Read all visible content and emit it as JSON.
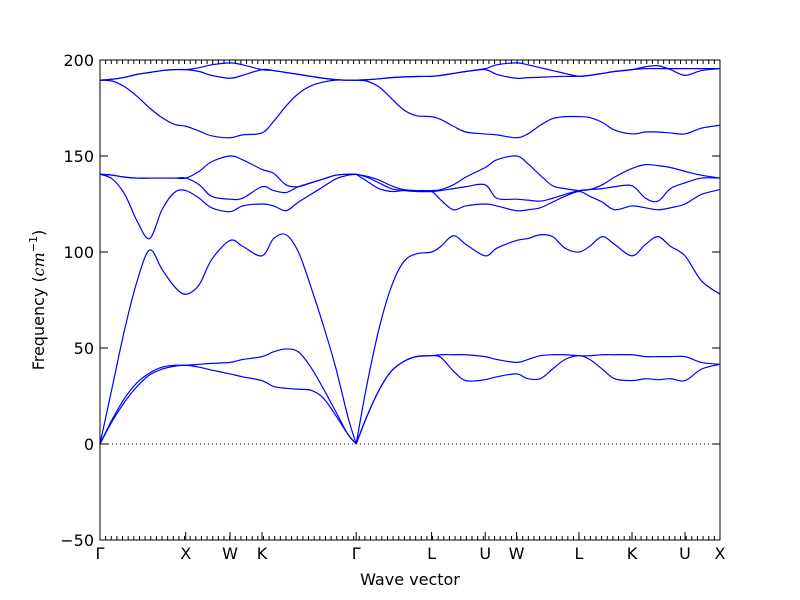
{
  "chart_data": {
    "type": "line",
    "xlabel": "Wave vector",
    "ylabel": "Frequency ($cm^{-1}$)",
    "ylabel_parts": {
      "prefix": "Frequency (",
      "unit_base": "cm",
      "unit_exp": "−1",
      "suffix": ")"
    },
    "ylim": [
      -50,
      200
    ],
    "y_ticks": [
      -50,
      0,
      50,
      100,
      150,
      200
    ],
    "y_tick_labels": [
      "−50",
      "0",
      "50",
      "100",
      "150",
      "200"
    ],
    "x_ticks": [
      {
        "label": "Γ",
        "x": 0.0
      },
      {
        "label": "X",
        "x": 0.1383
      },
      {
        "label": "W",
        "x": 0.2097
      },
      {
        "label": "K",
        "x": 0.2613
      },
      {
        "label": "Γ",
        "x": 0.4132
      },
      {
        "label": "L",
        "x": 0.5348
      },
      {
        "label": "U",
        "x": 0.6213
      },
      {
        "label": "W",
        "x": 0.6719
      },
      {
        "label": "L",
        "x": 0.7725
      },
      {
        "label": "K",
        "x": 0.8581
      },
      {
        "label": "U",
        "x": 0.9436
      },
      {
        "label": "X",
        "x": 1.0
      }
    ],
    "xlim": [
      0,
      1
    ],
    "zero_line": {
      "y": 0,
      "style": "dotted"
    },
    "series": [
      {
        "x": [
          0,
          0.02,
          0.04,
          0.06,
          0.08,
          0.1,
          0.12,
          0.1383,
          0.16,
          0.18,
          0.2097,
          0.23,
          0.2613,
          0.28,
          0.3,
          0.32,
          0.34,
          0.36,
          0.38,
          0.4,
          0.4132
        ],
        "values": [
          0,
          12,
          22,
          30,
          36,
          39,
          40.5,
          41,
          40,
          38.5,
          36.5,
          35,
          33,
          30,
          29,
          28.5,
          28,
          24,
          15,
          5,
          0
        ]
      },
      {
        "x": [
          0.4132,
          0.43,
          0.45,
          0.47,
          0.49,
          0.51,
          0.5348,
          0.55,
          0.57,
          0.59,
          0.6213,
          0.64,
          0.6719,
          0.69,
          0.71,
          0.73,
          0.75,
          0.7725,
          0.79,
          0.81,
          0.83,
          0.8581,
          0.88,
          0.9,
          0.92,
          0.9436,
          0.97,
          1.0
        ],
        "values": [
          0,
          14,
          28,
          38,
          43,
          45.5,
          46,
          45,
          38,
          33,
          33.5,
          35,
          36.5,
          34,
          34,
          39,
          44,
          46,
          44,
          39,
          34,
          33,
          34,
          33.5,
          34,
          33,
          39,
          41.5
        ]
      },
      {
        "x": [
          0,
          0.02,
          0.04,
          0.06,
          0.08,
          0.1,
          0.12,
          0.1383,
          0.16,
          0.18,
          0.2097,
          0.23,
          0.2613,
          0.28,
          0.3,
          0.32,
          0.34,
          0.36,
          0.38,
          0.4,
          0.4132
        ],
        "values": [
          0,
          13,
          24,
          32,
          37,
          40,
          41,
          41,
          41.5,
          42,
          42.5,
          44,
          45.5,
          48,
          49.5,
          48,
          40,
          29,
          17,
          5,
          0
        ]
      },
      {
        "x": [
          0.4132,
          0.43,
          0.45,
          0.47,
          0.49,
          0.51,
          0.5348,
          0.55,
          0.57,
          0.59,
          0.6213,
          0.64,
          0.6719,
          0.69,
          0.71,
          0.73,
          0.75,
          0.7725,
          0.79,
          0.81,
          0.83,
          0.8581,
          0.88,
          0.9,
          0.92,
          0.9436,
          0.97,
          1.0
        ],
        "values": [
          0,
          14,
          28,
          38,
          43,
          45.5,
          46,
          46.5,
          46.5,
          46.5,
          45.5,
          44,
          42.5,
          44,
          46,
          46.5,
          46.5,
          46,
          46,
          46.5,
          46.5,
          46.5,
          45.5,
          45.5,
          45.5,
          45.5,
          42.5,
          41.5
        ]
      },
      {
        "x": [
          0,
          0.02,
          0.04,
          0.06,
          0.08,
          0.1,
          0.12,
          0.1383,
          0.16,
          0.18,
          0.2097,
          0.23,
          0.2613,
          0.28,
          0.3,
          0.32,
          0.34,
          0.36,
          0.38,
          0.4,
          0.4132
        ],
        "values": [
          0,
          30,
          60,
          85,
          101,
          91,
          82,
          78,
          83,
          96,
          106,
          103,
          98,
          107,
          109,
          100,
          82,
          62,
          40,
          14,
          0
        ]
      },
      {
        "x": [
          0.4132,
          0.43,
          0.45,
          0.47,
          0.49,
          0.51,
          0.5348,
          0.55,
          0.57,
          0.59,
          0.6213,
          0.64,
          0.6719,
          0.69,
          0.71,
          0.73,
          0.75,
          0.7725,
          0.79,
          0.81,
          0.83,
          0.8581,
          0.88,
          0.9,
          0.92,
          0.9436,
          0.97,
          1.0
        ],
        "values": [
          0,
          30,
          60,
          82,
          95,
          99,
          100,
          103,
          108.5,
          104,
          98,
          102,
          106,
          107,
          109,
          108,
          102,
          100,
          103,
          108,
          104,
          98,
          104,
          108,
          103,
          98,
          85,
          78
        ]
      },
      {
        "x": [
          0,
          0.02,
          0.04,
          0.06,
          0.08,
          0.1,
          0.12,
          0.1383,
          0.16,
          0.18,
          0.2097,
          0.23,
          0.2613,
          0.28,
          0.3,
          0.32,
          0.34,
          0.36,
          0.38,
          0.4,
          0.4132
        ],
        "values": [
          140.5,
          138,
          130,
          116,
          107,
          122,
          131,
          132,
          128,
          123,
          121,
          124,
          125,
          124,
          121.5,
          126,
          130,
          134,
          138,
          140,
          140.5
        ]
      },
      {
        "x": [
          0.4132,
          0.43,
          0.45,
          0.47,
          0.49,
          0.51,
          0.5348,
          0.55,
          0.57,
          0.59,
          0.6213,
          0.64,
          0.6719,
          0.69,
          0.71,
          0.73,
          0.75,
          0.7725,
          0.79,
          0.81,
          0.83,
          0.8581,
          0.88,
          0.9,
          0.92,
          0.9436,
          0.97,
          1.0
        ],
        "values": [
          140.5,
          137,
          133,
          131.5,
          132,
          132,
          131.5,
          127,
          122,
          124,
          125,
          124,
          121.5,
          122,
          123,
          126,
          129,
          131.5,
          129,
          126,
          122,
          124,
          123,
          122,
          123,
          125,
          130,
          132.5
        ]
      },
      {
        "x": [
          0,
          0.02,
          0.04,
          0.06,
          0.08,
          0.1,
          0.12,
          0.1383,
          0.16,
          0.18,
          0.2097,
          0.23,
          0.2613,
          0.28,
          0.3,
          0.32,
          0.34,
          0.36,
          0.38,
          0.4,
          0.4132
        ],
        "values": [
          140.5,
          140,
          139,
          138.5,
          138.5,
          138.5,
          138.5,
          138.5,
          135,
          129,
          127.5,
          128,
          134,
          132,
          131,
          134,
          136,
          138,
          140,
          140.5,
          140.5
        ]
      },
      {
        "x": [
          0.4132,
          0.43,
          0.45,
          0.47,
          0.49,
          0.51,
          0.5348,
          0.55,
          0.57,
          0.59,
          0.6213,
          0.64,
          0.6719,
          0.69,
          0.71,
          0.73,
          0.75,
          0.7725,
          0.79,
          0.81,
          0.83,
          0.8581,
          0.88,
          0.9,
          0.92,
          0.9436,
          0.97,
          1.0
        ],
        "values": [
          140.5,
          139,
          136,
          133,
          132,
          131.5,
          131.5,
          132,
          133,
          134,
          135,
          128,
          127.5,
          127,
          126.5,
          128,
          130,
          132,
          132.5,
          133,
          134,
          134.5,
          128,
          126.5,
          133,
          136,
          138.5,
          138.5
        ]
      },
      {
        "x": [
          0,
          0.02,
          0.04,
          0.06,
          0.08,
          0.1,
          0.12,
          0.1383,
          0.16,
          0.18,
          0.2097,
          0.23,
          0.2613,
          0.28,
          0.3,
          0.32,
          0.34,
          0.36,
          0.38,
          0.4,
          0.4132
        ],
        "values": [
          140.5,
          140,
          139,
          138.5,
          138.5,
          138.5,
          138.5,
          138.5,
          142,
          147,
          150,
          148,
          143,
          141,
          135,
          134,
          136,
          138,
          140,
          140.5,
          140.5
        ]
      },
      {
        "x": [
          0.4132,
          0.43,
          0.45,
          0.47,
          0.49,
          0.51,
          0.5348,
          0.55,
          0.57,
          0.59,
          0.6213,
          0.64,
          0.6719,
          0.69,
          0.71,
          0.73,
          0.75,
          0.7725,
          0.79,
          0.81,
          0.83,
          0.8581,
          0.88,
          0.9,
          0.92,
          0.9436,
          0.97,
          1.0
        ],
        "values": [
          140.5,
          139.5,
          137.5,
          134.5,
          132.5,
          132,
          132,
          132.5,
          135,
          139,
          144,
          148,
          150,
          146,
          140,
          134.5,
          133,
          132,
          132.5,
          135,
          139,
          143.5,
          145.5,
          145,
          144,
          142,
          140,
          138.5
        ]
      },
      {
        "x": [
          0,
          0.02,
          0.04,
          0.06,
          0.08,
          0.1,
          0.12,
          0.1383,
          0.16,
          0.18,
          0.2097,
          0.23,
          0.2613,
          0.28,
          0.3,
          0.32,
          0.34,
          0.36,
          0.38,
          0.4,
          0.4132
        ],
        "values": [
          189.5,
          189,
          186,
          181,
          175,
          170,
          166.5,
          165.5,
          163,
          160.5,
          159.5,
          161,
          162,
          168,
          176,
          182.5,
          186.5,
          188.5,
          189.5,
          189.5,
          189.5
        ]
      },
      {
        "x": [
          0.4132,
          0.43,
          0.45,
          0.47,
          0.49,
          0.51,
          0.5348,
          0.55,
          0.57,
          0.59,
          0.6213,
          0.64,
          0.6719,
          0.69,
          0.71,
          0.73,
          0.75,
          0.7725,
          0.79,
          0.81,
          0.83,
          0.8581,
          0.88,
          0.9,
          0.92,
          0.9436,
          0.97,
          1.0
        ],
        "values": [
          189.5,
          189,
          186,
          180,
          174,
          171,
          170.5,
          169,
          165.5,
          162.5,
          161.5,
          161,
          159.5,
          161.5,
          166,
          169.5,
          170.5,
          170.5,
          170,
          167.5,
          163.5,
          161.5,
          162.5,
          162.5,
          162,
          161.5,
          164.5,
          166
        ]
      },
      {
        "x": [
          0,
          0.02,
          0.04,
          0.06,
          0.08,
          0.1,
          0.12,
          0.1383,
          0.16,
          0.18,
          0.2097,
          0.23,
          0.2613,
          0.28,
          0.3,
          0.32,
          0.34,
          0.36,
          0.38,
          0.4,
          0.4132
        ],
        "values": [
          189.5,
          190,
          191,
          192.5,
          193.5,
          194.5,
          195,
          195,
          194,
          192,
          190.5,
          192,
          195,
          194.5,
          193.5,
          192.5,
          191.5,
          190.5,
          189.8,
          189.5,
          189.5
        ]
      },
      {
        "x": [
          0.4132,
          0.43,
          0.45,
          0.47,
          0.49,
          0.51,
          0.5348,
          0.55,
          0.57,
          0.59,
          0.6213,
          0.64,
          0.6719,
          0.69,
          0.71,
          0.73,
          0.75,
          0.7725,
          0.79,
          0.81,
          0.83,
          0.8581,
          0.88,
          0.9,
          0.92,
          0.9436,
          0.97,
          1.0
        ],
        "values": [
          189.5,
          189.7,
          190.2,
          190.8,
          191.2,
          191.4,
          191.5,
          192,
          193,
          194,
          195,
          192.5,
          190.5,
          190.8,
          191,
          191.3,
          191.5,
          191.5,
          192,
          193,
          194,
          195,
          196.5,
          197,
          195,
          192,
          194.5,
          195.5
        ]
      },
      {
        "x": [
          0,
          0.02,
          0.04,
          0.06,
          0.08,
          0.1,
          0.12,
          0.1383,
          0.16,
          0.18,
          0.2097,
          0.23,
          0.2613,
          0.28,
          0.3,
          0.32,
          0.34,
          0.36,
          0.38,
          0.4,
          0.4132
        ],
        "values": [
          189.5,
          190,
          191,
          192.5,
          193.5,
          194.5,
          195,
          195,
          196,
          197.5,
          198.5,
          197.5,
          195,
          194.5,
          193.5,
          192.5,
          191.5,
          190.5,
          189.8,
          189.5,
          189.5
        ]
      },
      {
        "x": [
          0.4132,
          0.43,
          0.45,
          0.47,
          0.49,
          0.51,
          0.5348,
          0.55,
          0.57,
          0.59,
          0.6213,
          0.64,
          0.6719,
          0.69,
          0.71,
          0.73,
          0.75,
          0.7725,
          0.79,
          0.81,
          0.83,
          0.8581,
          0.88,
          0.9,
          0.92,
          0.9436,
          0.97,
          1.0
        ],
        "values": [
          189.5,
          189.7,
          190.2,
          190.8,
          191.2,
          191.4,
          191.5,
          192,
          193,
          194,
          195.5,
          197.5,
          198.5,
          197.5,
          196,
          194.5,
          193,
          191.5,
          192,
          193,
          194,
          195,
          195.5,
          195.5,
          195.5,
          195.5,
          195.5,
          195.5
        ]
      }
    ]
  }
}
